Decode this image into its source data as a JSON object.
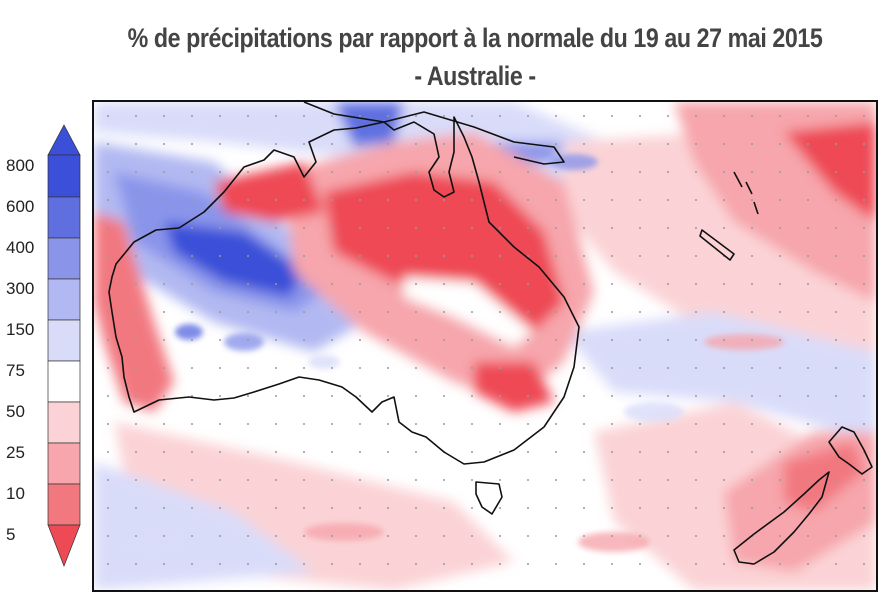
{
  "title": {
    "line1": "% de précipitations par rapport à la normale du 19 au 27 mai 2015",
    "line2": "- Australie -"
  },
  "legend": {
    "labels": [
      "800",
      "600",
      "400",
      "300",
      "150",
      "75",
      "50",
      "25",
      "10",
      "5"
    ],
    "colors": [
      "#3b4fd8",
      "#5f6fe0",
      "#8a95ea",
      "#b2b9f2",
      "#d9dcf9",
      "#ffffff",
      "#fbd3d6",
      "#f6a6ac",
      "#f27880",
      "#ee4a55"
    ]
  },
  "colors": {
    "wet_strong": "#3b4fd8",
    "wet": "#8a95ea",
    "wet_light": "#d9dcf9",
    "dry_light": "#fbd3d6",
    "dry": "#f6a6ac",
    "dry_strong": "#ee4a55",
    "coastline": "#111111"
  }
}
